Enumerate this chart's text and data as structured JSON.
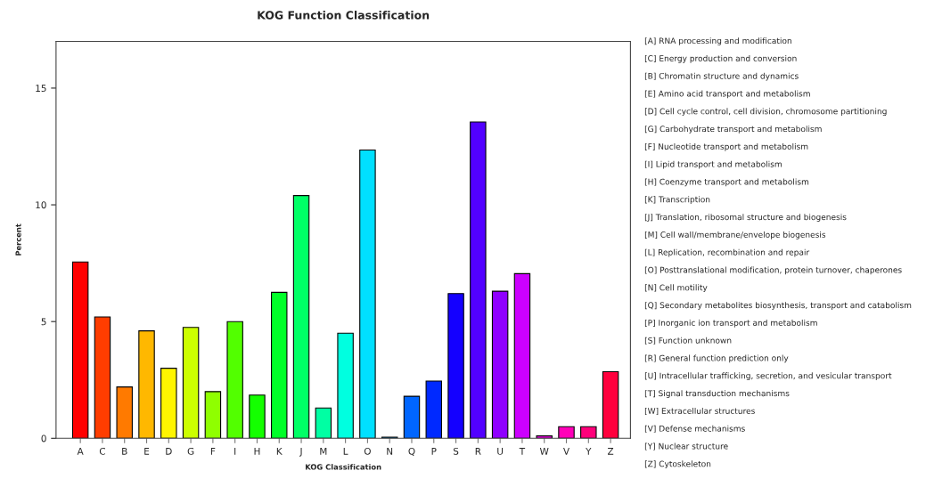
{
  "chart_data": {
    "type": "bar",
    "title": "KOG Function Classification",
    "xlabel": "KOG Classification",
    "ylabel": "Percent",
    "categories": [
      "A",
      "C",
      "B",
      "E",
      "D",
      "G",
      "F",
      "I",
      "H",
      "K",
      "J",
      "M",
      "L",
      "O",
      "N",
      "Q",
      "P",
      "S",
      "R",
      "U",
      "T",
      "W",
      "V",
      "Y",
      "Z"
    ],
    "values": [
      7.55,
      5.2,
      2.2,
      4.6,
      3.0,
      4.75,
      2.0,
      5.0,
      1.85,
      6.25,
      10.4,
      1.3,
      4.5,
      12.35,
      0.05,
      1.8,
      2.45,
      6.2,
      13.55,
      6.3,
      7.05,
      0.1,
      0.5,
      0.5,
      2.85
    ],
    "colors": [
      "#ff0000",
      "#ff3d00",
      "#ff7a00",
      "#ffb800",
      "#fff500",
      "#ccff00",
      "#8fff00",
      "#52ff00",
      "#14ff00",
      "#00ff29",
      "#00ff66",
      "#00ffa3",
      "#00ffe0",
      "#00e0ff",
      "#00a3ff",
      "#0066ff",
      "#0029ff",
      "#1400ff",
      "#5200ff",
      "#8f00ff",
      "#cc00ff",
      "#ff00f5",
      "#ff00b8",
      "#ff007a",
      "#ff003d"
    ],
    "ylim": [
      0,
      17
    ],
    "yticks": [
      0,
      5,
      10,
      15
    ],
    "grid": false,
    "annotations": [
      "[A] RNA processing and modification",
      "[C] Energy production and conversion",
      "[B] Chromatin structure and dynamics",
      "[E] Amino acid transport and metabolism",
      "[D] Cell cycle control, cell division, chromosome partitioning",
      "[G] Carbohydrate transport and metabolism",
      "[F] Nucleotide transport and metabolism",
      "[I] Lipid transport and metabolism",
      "[H] Coenzyme transport and metabolism",
      "[K] Transcription",
      "[J] Translation, ribosomal structure and biogenesis",
      "[M] Cell wall/membrane/envelope biogenesis",
      "[L] Replication, recombination and repair",
      "[O] Posttranslational modification, protein turnover, chaperones",
      "[N] Cell motility",
      "[Q] Secondary metabolites biosynthesis, transport and catabolism",
      "[P] Inorganic ion transport and metabolism",
      "[S] Function unknown",
      "[R] General function prediction only",
      "[U] Intracellular trafficking, secretion, and vesicular transport",
      "[T] Signal transduction mechanisms",
      "[W] Extracellular structures",
      "[V] Defense mechanisms",
      "[Y] Nuclear structure",
      "[Z] Cytoskeleton"
    ]
  }
}
